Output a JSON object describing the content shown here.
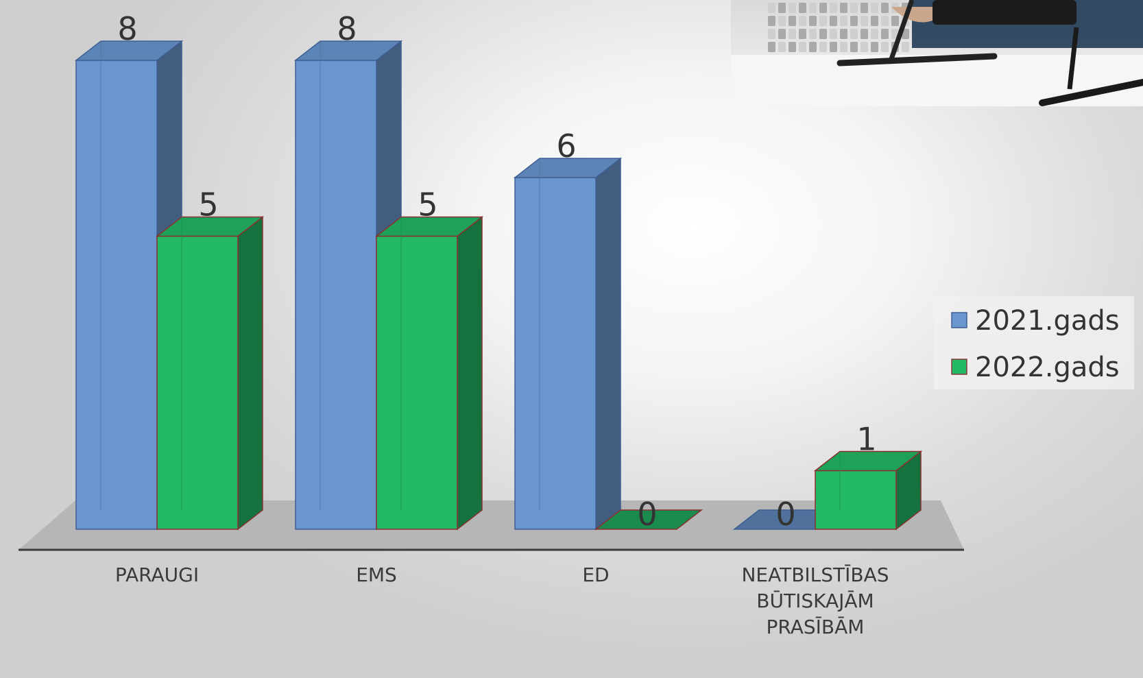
{
  "chart_data": {
    "type": "bar",
    "style": "3d-clustered-column",
    "categories": [
      "PARAUGI",
      "EMS",
      "ED",
      "NEATBILSTĪBAS BŪTISKAJĀM PRASĪBĀM"
    ],
    "series": [
      {
        "name": "2021.gads",
        "values": [
          8,
          8,
          6,
          0
        ],
        "color": "#6a96cf"
      },
      {
        "name": "2022.gads",
        "values": [
          5,
          5,
          0,
          1
        ],
        "color": "#22b866"
      }
    ],
    "title": "",
    "xlabel": "",
    "ylabel": "",
    "ylim": [
      0,
      8
    ],
    "grid": false,
    "legend": "right",
    "data_labels": true,
    "category_label_lines": [
      [
        "PARAUGI"
      ],
      [
        "EMS"
      ],
      [
        "ED"
      ],
      [
        "NEATBILSTĪBAS",
        "BŪTISKAJĀM",
        "PRASĪBĀM"
      ]
    ]
  },
  "photo": {
    "subject": "drone-test-photo"
  }
}
